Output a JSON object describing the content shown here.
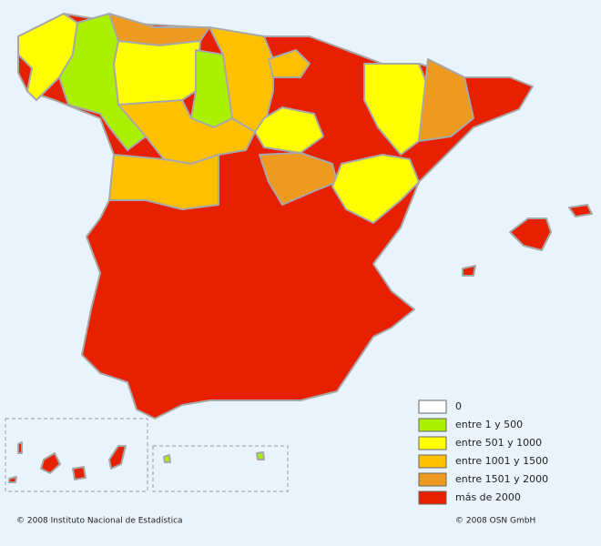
{
  "legend": {
    "items": [
      {
        "label": "0",
        "color": "#ffffff"
      },
      {
        "label": "entre 1 y 500",
        "color": "#aaf000"
      },
      {
        "label": "entre 501 y 1000",
        "color": "#ffff00"
      },
      {
        "label": "entre 1001 y 1500",
        "color": "#ffc000"
      },
      {
        "label": "entre 1501 y 2000",
        "color": "#ee9a20"
      },
      {
        "label": "más de 2000",
        "color": "#e62000"
      }
    ]
  },
  "credits": {
    "left": "© 2008 Instituto Nacional de Estadística",
    "right": "© 2008 OSN GmbH"
  }
}
